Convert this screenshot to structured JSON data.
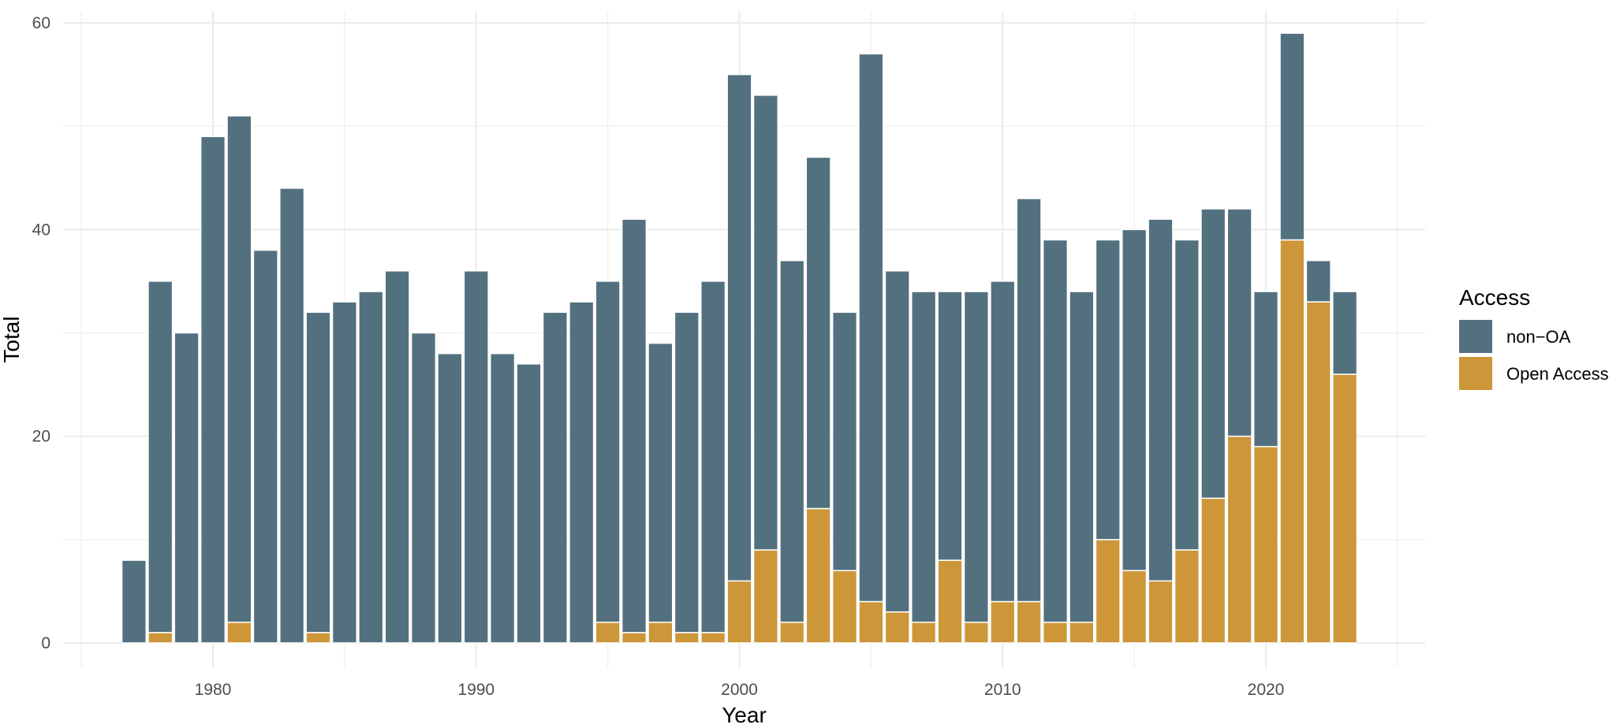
{
  "chart_data": {
    "type": "bar",
    "stacked": true,
    "xlabel": "Year",
    "ylabel": "Total",
    "xlim": [
      1975,
      2026
    ],
    "ylim": [
      0,
      60
    ],
    "x_ticks": [
      1980,
      1990,
      2000,
      2010,
      2020
    ],
    "y_ticks": [
      0,
      20,
      40,
      60
    ],
    "grid": true,
    "legend_title": "Access",
    "legend_position": "right",
    "x": [
      1977,
      1978,
      1979,
      1980,
      1981,
      1982,
      1983,
      1984,
      1985,
      1986,
      1987,
      1988,
      1989,
      1990,
      1991,
      1992,
      1993,
      1994,
      1995,
      1996,
      1997,
      1998,
      1999,
      2000,
      2001,
      2002,
      2003,
      2004,
      2005,
      2006,
      2007,
      2008,
      2009,
      2010,
      2011,
      2012,
      2013,
      2014,
      2015,
      2016,
      2017,
      2018,
      2019,
      2020,
      2021,
      2022,
      2023
    ],
    "series": [
      {
        "name": "non−OA",
        "color": "#53707f",
        "values": [
          8,
          34,
          30,
          49,
          49,
          38,
          44,
          31,
          33,
          34,
          36,
          30,
          28,
          36,
          28,
          27,
          32,
          33,
          33,
          40,
          27,
          31,
          34,
          49,
          44,
          35,
          34,
          25,
          53,
          33,
          32,
          26,
          32,
          31,
          39,
          37,
          32,
          29,
          33,
          35,
          30,
          28,
          22,
          15,
          20,
          4,
          8
        ]
      },
      {
        "name": "Open Access",
        "color": "#cc9639",
        "values": [
          0,
          1,
          0,
          0,
          2,
          0,
          0,
          1,
          0,
          0,
          0,
          0,
          0,
          0,
          0,
          0,
          0,
          0,
          2,
          1,
          2,
          1,
          1,
          6,
          9,
          2,
          13,
          7,
          4,
          3,
          2,
          8,
          2,
          4,
          4,
          2,
          2,
          10,
          7,
          6,
          9,
          14,
          20,
          19,
          39,
          33,
          26
        ]
      }
    ]
  }
}
